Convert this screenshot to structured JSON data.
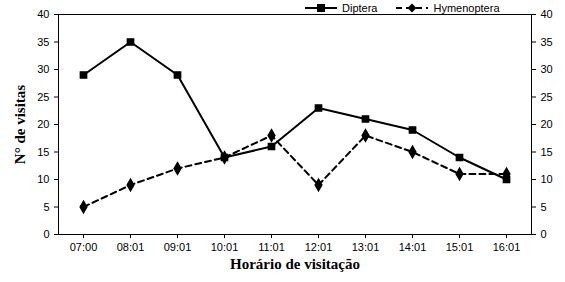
{
  "chart_data": {
    "type": "line",
    "xlabel": "Horário de visitação",
    "ylabel": "N° de visitas",
    "categories": [
      "07:00",
      "08:01",
      "09:01",
      "10:01",
      "11:01",
      "12:01",
      "13:01",
      "14:01",
      "15:01",
      "16:01"
    ],
    "series": [
      {
        "name": "Diptera",
        "color": "#000000",
        "marker": "square",
        "line_style": "solid",
        "values": [
          29,
          35,
          29,
          14,
          16,
          23,
          21,
          19,
          14,
          10
        ]
      },
      {
        "name": "Hymenoptera",
        "color": "#000000",
        "marker": "diamond",
        "line_style": "dashed",
        "values": [
          5,
          9,
          12,
          14,
          18,
          9,
          18,
          15,
          11,
          11
        ]
      }
    ],
    "ylim": [
      0,
      40
    ],
    "yticks": [
      0,
      5,
      10,
      15,
      20,
      25,
      30,
      35,
      40
    ],
    "y2lim": [
      0,
      40
    ],
    "y2ticks": [
      0,
      5,
      10,
      15,
      20,
      25,
      30,
      35,
      40
    ],
    "grid": false,
    "legend": "top"
  }
}
